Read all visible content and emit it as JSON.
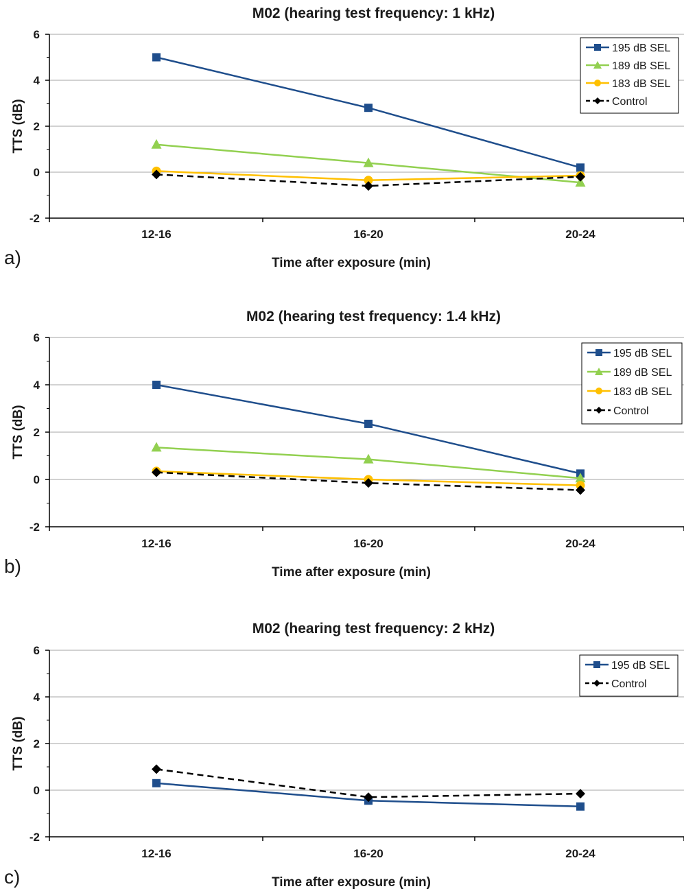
{
  "chart_data": [
    {
      "type": "line",
      "panel_label": "a)",
      "title": "M02 (hearing test frequency: 1 kHz)",
      "xlabel": "Time after exposure (min)",
      "ylabel": "TTS (dB)",
      "categories": [
        "12-16",
        "16-20",
        "20-24"
      ],
      "ylim": [
        -2,
        6
      ],
      "yticks": [
        -2,
        0,
        2,
        4,
        6
      ],
      "grid": true,
      "legend_position": "top-right",
      "series": [
        {
          "name": "195 dB SEL",
          "values": [
            5.0,
            2.8,
            0.2
          ],
          "color": "#1f4e8c",
          "marker": "square",
          "dash": false
        },
        {
          "name": "189 dB SEL",
          "values": [
            1.2,
            0.4,
            -0.45
          ],
          "color": "#92d050",
          "marker": "triangle",
          "dash": false
        },
        {
          "name": "183 dB SEL",
          "values": [
            0.05,
            -0.35,
            -0.15
          ],
          "color": "#ffc000",
          "marker": "circle",
          "dash": false
        },
        {
          "name": "Control",
          "values": [
            -0.1,
            -0.6,
            -0.2
          ],
          "color": "#000000",
          "marker": "diamond",
          "dash": true
        }
      ]
    },
    {
      "type": "line",
      "panel_label": "b)",
      "title": "M02 (hearing test frequency: 1.4 kHz)",
      "xlabel": "Time after exposure (min)",
      "ylabel": "TTS (dB)",
      "categories": [
        "12-16",
        "16-20",
        "20-24"
      ],
      "ylim": [
        -2,
        6
      ],
      "yticks": [
        -2,
        0,
        2,
        4,
        6
      ],
      "grid": true,
      "legend_position": "top-right",
      "series": [
        {
          "name": "195 dB SEL",
          "values": [
            4.0,
            2.35,
            0.25
          ],
          "color": "#1f4e8c",
          "marker": "square",
          "dash": false
        },
        {
          "name": "189 dB SEL",
          "values": [
            1.35,
            0.85,
            0.05
          ],
          "color": "#92d050",
          "marker": "triangle",
          "dash": false
        },
        {
          "name": "183 dB SEL",
          "values": [
            0.35,
            0.0,
            -0.25
          ],
          "color": "#ffc000",
          "marker": "circle",
          "dash": false
        },
        {
          "name": "Control",
          "values": [
            0.3,
            -0.15,
            -0.45
          ],
          "color": "#000000",
          "marker": "diamond",
          "dash": true
        }
      ]
    },
    {
      "type": "line",
      "panel_label": "c)",
      "title": "M02 (hearing test frequency: 2 kHz)",
      "xlabel": "Time after exposure (min)",
      "ylabel": "TTS (dB)",
      "categories": [
        "12-16",
        "16-20",
        "20-24"
      ],
      "ylim": [
        -2,
        6
      ],
      "yticks": [
        -2,
        0,
        2,
        4,
        6
      ],
      "grid": true,
      "legend_position": "top-right",
      "series": [
        {
          "name": "195 dB SEL",
          "values": [
            0.3,
            -0.45,
            -0.7
          ],
          "color": "#1f4e8c",
          "marker": "square",
          "dash": false
        },
        {
          "name": "Control",
          "values": [
            0.9,
            -0.3,
            -0.15
          ],
          "color": "#000000",
          "marker": "diamond",
          "dash": true
        }
      ]
    }
  ]
}
